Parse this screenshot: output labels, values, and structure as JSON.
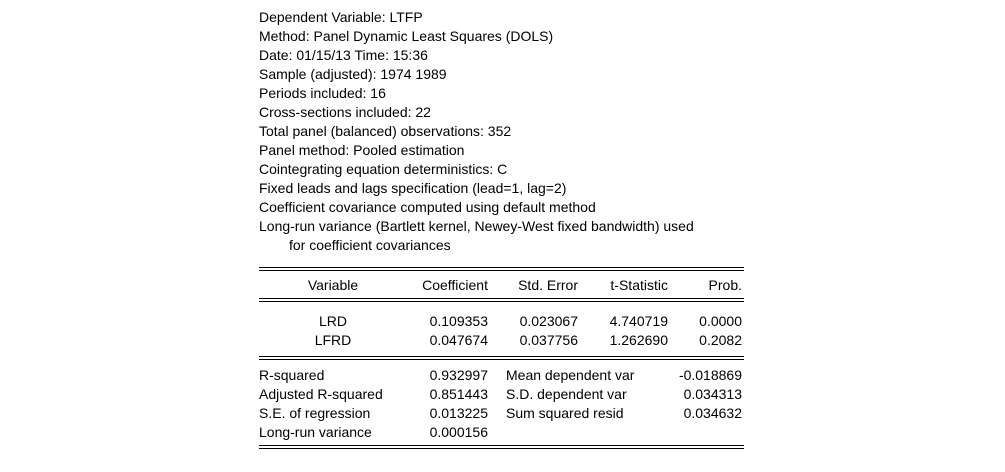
{
  "header": {
    "lines": [
      "Dependent Variable: LTFP",
      "Method: Panel Dynamic Least Squares (DOLS)",
      "Date: 01/15/13   Time: 15:36",
      "Sample (adjusted): 1974 1989",
      "Periods included: 16",
      "Cross-sections included: 22",
      "Total panel (balanced) observations: 352",
      "Panel method: Pooled estimation",
      "Cointegrating equation deterministics: C",
      "Fixed leads and lags specification (lead=1, lag=2)",
      "Coefficient covariance computed using default method",
      "Long-run variance (Bartlett kernel, Newey-West fixed bandwidth) used"
    ],
    "continuation": "for coefficient covariances"
  },
  "table": {
    "columns": [
      "Variable",
      "Coefficient",
      "Std. Error",
      "t-Statistic",
      "Prob."
    ],
    "rows": [
      [
        "LRD",
        "0.109353",
        "0.023067",
        "4.740719",
        "0.0000"
      ],
      [
        "LFRD",
        "0.047674",
        "0.037756",
        "1.262690",
        "0.2082"
      ]
    ]
  },
  "stats": [
    [
      "R-squared",
      "0.932997",
      "Mean dependent var",
      "-0.018869"
    ],
    [
      "Adjusted R-squared",
      "0.851443",
      "S.D. dependent var",
      "0.034313"
    ],
    [
      "S.E. of regression",
      "0.013225",
      "Sum squared resid",
      "0.034632"
    ],
    [
      "Long-run variance",
      "0.000156",
      "",
      ""
    ]
  ]
}
